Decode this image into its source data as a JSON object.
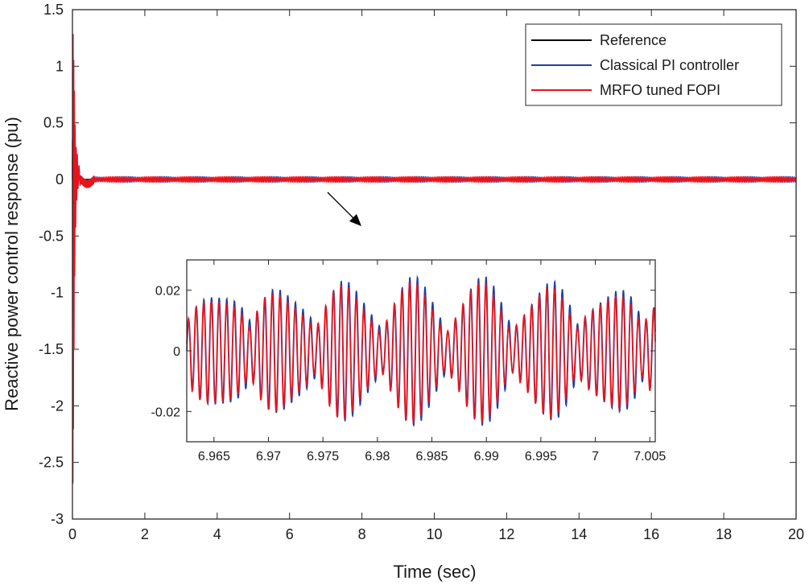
{
  "chart_data": [
    {
      "type": "line",
      "title": "",
      "xlabel": "Time (sec)",
      "ylabel": "Reactive power control response (pu)",
      "xlim": [
        0,
        20
      ],
      "ylim": [
        -3,
        1.5
      ],
      "xticks": [
        "0",
        "2",
        "4",
        "6",
        "8",
        "10",
        "12",
        "14",
        "16",
        "18",
        "20"
      ],
      "yticks": [
        "1.5",
        "1",
        "0.5",
        "0",
        "-0.5",
        "-1",
        "-1.5",
        "-2",
        "-2.5",
        "-3"
      ],
      "legend_position": "top-right",
      "series": [
        {
          "name": "Reference",
          "color": "#000000",
          "x": [
            0,
            20
          ],
          "y": [
            0,
            0
          ]
        },
        {
          "name": "Classical PI controller",
          "color": "#1f3fa8",
          "peak_max": 1.28,
          "peak_min": -2.68,
          "steady_state": 0,
          "ripple_amplitude": 0.025
        },
        {
          "name": "MRFO tuned FOPI",
          "color": "#e8141b",
          "peak_max": 1.28,
          "peak_min": -2.68,
          "steady_state": 0,
          "ripple_amplitude": 0.024
        }
      ]
    },
    {
      "type": "line",
      "title": "inset (zoomed view)",
      "xlabel": "",
      "ylabel": "",
      "xlim": [
        6.9625,
        7.0055
      ],
      "ylim": [
        -0.03,
        0.03
      ],
      "xticks": [
        "6.965",
        "6.97",
        "6.975",
        "6.98",
        "6.985",
        "6.99",
        "6.995",
        "7",
        "7.005"
      ],
      "yticks": [
        "0.02",
        "0",
        "-0.02"
      ],
      "series": [
        {
          "name": "Classical PI controller",
          "color": "#1f3fa8",
          "amplitude_range": [
            -0.025,
            0.025
          ],
          "oscillation_period": 0.0007,
          "envelope_period": 0.006
        },
        {
          "name": "MRFO tuned FOPI",
          "color": "#e8141b",
          "amplitude_range": [
            -0.024,
            0.023
          ],
          "oscillation_period": 0.0007,
          "envelope_period": 0.006
        }
      ]
    }
  ]
}
